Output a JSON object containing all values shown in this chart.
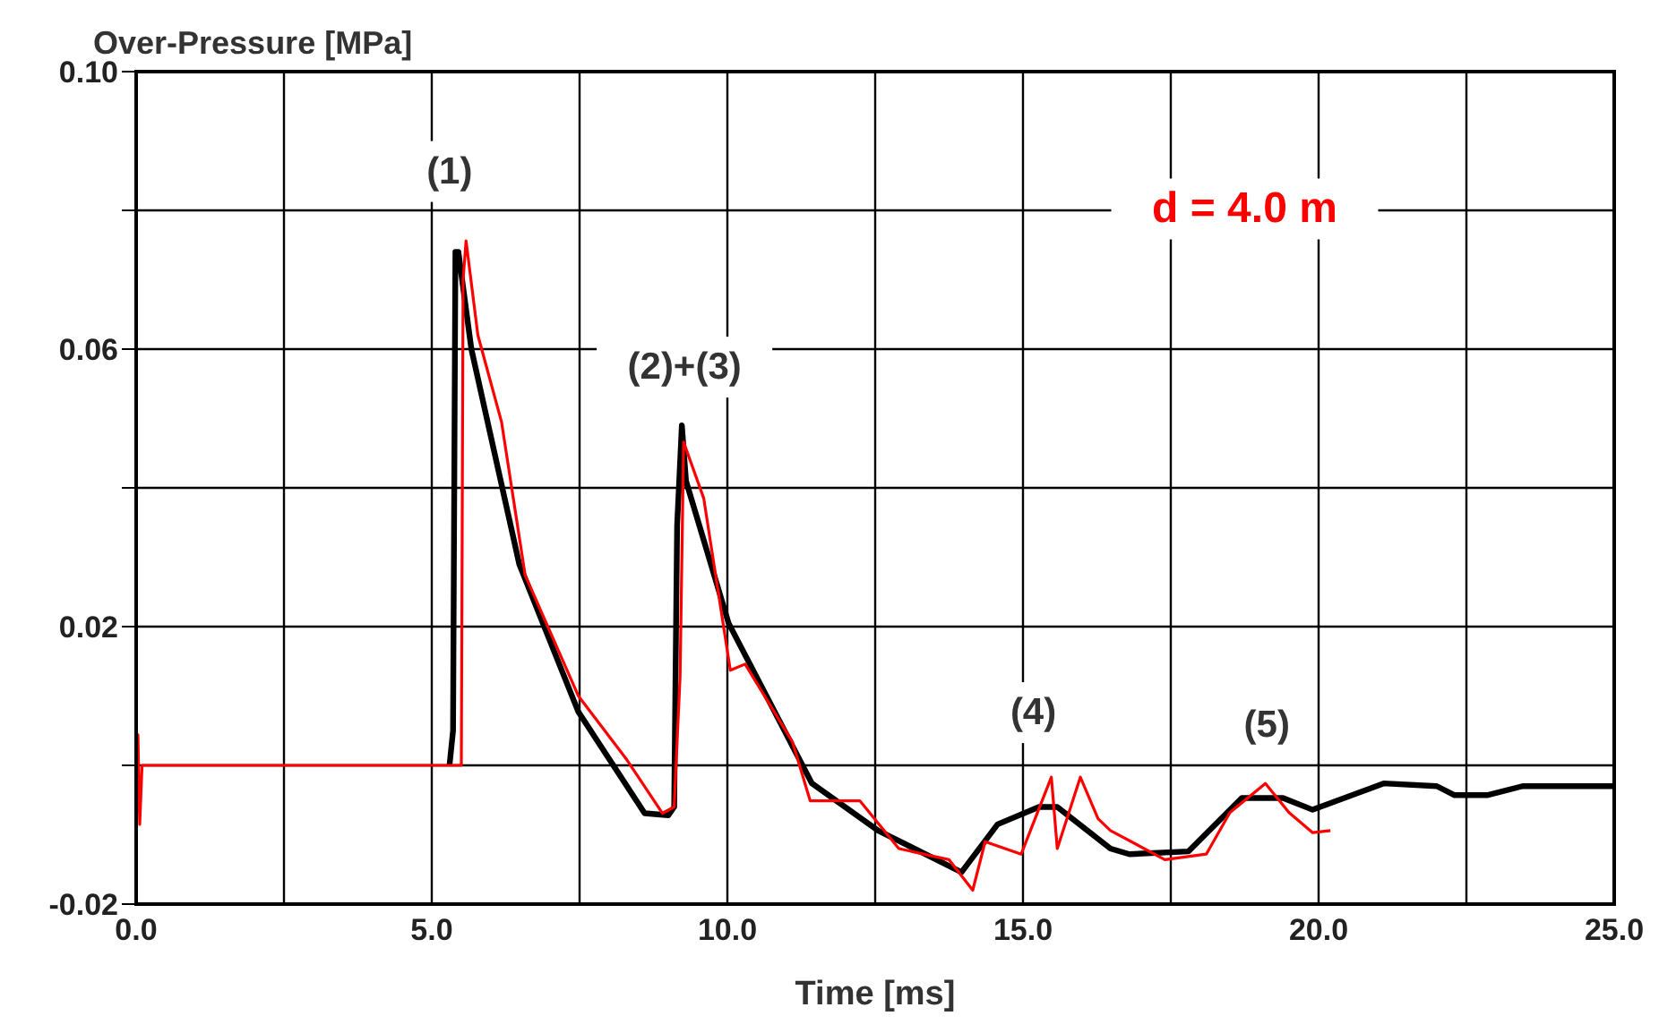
{
  "chart_data": {
    "type": "line",
    "ylabel": "Over-Pressure [MPa]",
    "xlabel": "Time [ms]",
    "xlim": [
      0,
      25
    ],
    "ylim": [
      -0.02,
      0.1
    ],
    "xticks": [
      {
        "value": 0,
        "label": "0.0"
      },
      {
        "value": 2.5,
        "label": null
      },
      {
        "value": 5,
        "label": "5.0"
      },
      {
        "value": 7.5,
        "label": null
      },
      {
        "value": 10,
        "label": "10.0"
      },
      {
        "value": 12.5,
        "label": null
      },
      {
        "value": 15,
        "label": "15.0"
      },
      {
        "value": 17.5,
        "label": null
      },
      {
        "value": 20,
        "label": "20.0"
      },
      {
        "value": 22.5,
        "label": null
      },
      {
        "value": 25,
        "label": "25.0"
      }
    ],
    "yticks": [
      -0.02,
      {
        "value": 0,
        "label": null
      },
      0.02,
      {
        "value": 0.04,
        "label": null
      },
      0.06,
      {
        "value": 0.08,
        "label": null
      },
      {
        "value": 0.1,
        "label": "0.10"
      }
    ],
    "grid": true,
    "marker": "none",
    "series": [
      {
        "color": "#000000",
        "x": [
          5.3,
          5.36,
          5.4,
          5.45,
          5.67,
          6.48,
          7.48,
          8.6,
          9.0,
          9.1,
          9.15,
          9.23,
          9.3,
          10.02,
          11.43,
          12.55,
          13.96,
          14.57,
          15.27,
          15.58,
          16.48,
          16.8,
          17.8,
          18.7,
          19.4,
          19.9,
          21.1,
          22.0,
          22.3,
          22.85,
          23.45,
          25.0
        ],
        "values": [
          0,
          0.005,
          0.074,
          0.074,
          0.06,
          0.029,
          0.0077,
          -0.0069,
          -0.0072,
          -0.006,
          0.0346,
          0.049,
          0.041,
          0.0205,
          -0.0026,
          -0.0094,
          -0.0154,
          -0.0085,
          -0.006,
          -0.006,
          -0.012,
          -0.0128,
          -0.0124,
          -0.0047,
          -0.0047,
          -0.0064,
          -0.0026,
          -0.003,
          -0.0043,
          -0.0043,
          -0.003,
          -0.003
        ]
      },
      {
        "color": "#ff0000",
        "x": [
          0,
          0.03,
          0.06,
          0.1,
          5.5,
          5.53,
          5.58,
          5.78,
          6.18,
          6.58,
          7.48,
          8.3,
          8.9,
          9.1,
          9.2,
          9.26,
          9.6,
          10.05,
          10.3,
          11.1,
          11.4,
          12.24,
          12.9,
          13.75,
          14.15,
          14.36,
          14.97,
          15.48,
          15.58,
          15.97,
          16.27,
          16.48,
          17.4,
          18.1,
          18.5,
          19.1,
          19.5,
          19.9,
          20.2
        ],
        "values": [
          0,
          0.0044,
          -0.0085,
          0,
          0,
          0.07,
          0.0756,
          0.062,
          0.0495,
          0.0274,
          0.01,
          0.0008,
          -0.0069,
          -0.006,
          0.0128,
          0.0466,
          0.0385,
          0.0137,
          0.0146,
          0.0034,
          -0.0051,
          -0.0051,
          -0.012,
          -0.0136,
          -0.018,
          -0.011,
          -0.0128,
          -0.0017,
          -0.012,
          -0.0017,
          -0.0077,
          -0.0094,
          -0.0136,
          -0.0128,
          -0.0068,
          -0.0026,
          -0.0068,
          -0.0097,
          -0.0094
        ]
      }
    ],
    "annotations": [
      "(1)",
      "(2)+(3)",
      "(4)",
      "(5)",
      "d = 4.0 m"
    ]
  }
}
